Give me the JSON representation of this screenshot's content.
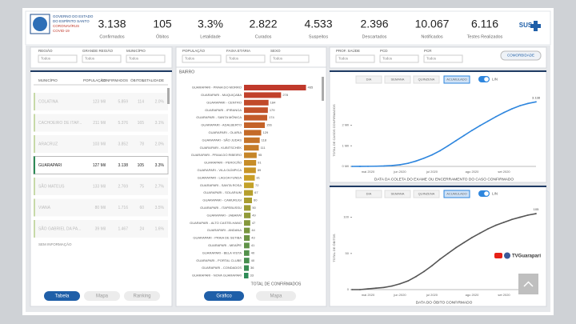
{
  "header": {
    "logo_lines": [
      "GOVERNO DO ESTADO",
      "DO ESPÍRITO SANTO",
      "CORONAVÍRUS",
      "COVID-19"
    ],
    "sus": "SUS"
  },
  "kpis": [
    {
      "value": "3.138",
      "label": "Confirmados"
    },
    {
      "value": "105",
      "label": "Óbitos"
    },
    {
      "value": "3.3%",
      "label": "Letalidade"
    },
    {
      "value": "2.822",
      "label": "Curados"
    },
    {
      "value": "4.533",
      "label": "Suspeitos"
    },
    {
      "value": "2.396",
      "label": "Descartados"
    },
    {
      "value": "10.067",
      "label": "Notificados"
    },
    {
      "value": "6.116",
      "label": "Testes Realizados"
    }
  ],
  "filters": {
    "left": [
      {
        "label": "REGIÃO",
        "value": "Todos"
      },
      {
        "label": "GRANDE REGIÃO",
        "value": "Todos"
      },
      {
        "label": "MUNICÍPIO",
        "value": "Todos"
      }
    ],
    "middle": [
      {
        "label": "POPULAÇÃO",
        "value": "Todos"
      },
      {
        "label": "FAIXA ETÁRIA",
        "value": "Todos"
      },
      {
        "label": "SEXO",
        "value": "Todos"
      }
    ],
    "right": [
      {
        "label": "PROF. SAÚDE",
        "value": "Todos"
      },
      {
        "label": "PCD",
        "value": "Todos"
      },
      {
        "label": "PCR",
        "value": "Todos"
      }
    ],
    "button": "COMORBIDADE"
  },
  "table": {
    "columns": [
      "MUNICÍPIO",
      "POPULAÇÃO",
      "CONFIRMADOS",
      "ÓBITOS",
      "LETALIDADE"
    ],
    "rows": [
      [
        "COLATINA",
        "123 Mil",
        "5.859",
        "114",
        "2.0%"
      ],
      [
        "CACHOEIRO DE ITAP...",
        "211 Mil",
        "5.376",
        "165",
        "3.1%"
      ],
      [
        "ARACRUZ",
        "103 Mil",
        "3.852",
        "78",
        "2.0%"
      ],
      [
        "GUARAPARI",
        "127 Mil",
        "3.138",
        "105",
        "3.3%"
      ],
      [
        "SÃO MATEUS",
        "133 Mil",
        "2.769",
        "75",
        "2.7%"
      ],
      [
        "VIANA",
        "80 Mil",
        "1.716",
        "60",
        "3.5%"
      ],
      [
        "SÃO GABRIEL DA PA...",
        "39 Mil",
        "1.467",
        "24",
        "1.6%"
      ]
    ],
    "selected_row": 3,
    "footer": "SEM INFORMAÇÃO"
  },
  "nav": {
    "left": [
      "Tabela",
      "Mapa",
      "Ranking"
    ],
    "middle": [
      "Gráfico",
      "Mapa"
    ]
  },
  "watermark": "TVGuarapari",
  "chart_data": [
    {
      "type": "bar",
      "title": "BAIRRO",
      "x_label": "TOTAL DE CONFIRMADOS",
      "categories": [
        "GUARAPARI - PRAIA DO MORRO",
        "GUARAPARI - MUQUIÇABA",
        "GUARAPARI - CENTRO",
        "GUARAPARI - IPIRANGA",
        "GUARAPARI - SANTA MÔNICA",
        "GUARAPARI - ADALBERTO",
        "GUARAPARI - OLARIA",
        "GUARAPARI - SÃO JUDAS",
        "GUARAPARI - KUBITSCHEK",
        "GUARAPARI - PRAIA DO RIBEIRO",
        "GUARAPARI - PEROCÃO",
        "GUARAPARI - VILA OLÍMPICA",
        "GUARAPARI - LAGOA FUNDA",
        "GUARAPARI - SANTA ROSA",
        "GUARAPARI - SOLARIUM",
        "GUARAPARI - CAMURUGI",
        "GUARAPARI - ITAPEBUSSU",
        "GUARAPARI - JABARAÍ",
        "GUARAPARI - ALTO CASTELHANO",
        "GUARAPARI - ANDANA",
        "GUARAPARI - PRAIA DE SETIBA",
        "GUARAPARI - MEAÍPE",
        "GUARAPARI - BELA VISTA",
        "GUARAPARI - PORTAL CLUBE",
        "GUARAPARI - CONDADOS",
        "GUARAPARI - NOVA GUARAPARI"
      ],
      "values": [
        465,
        278,
        184,
        179,
        174,
        156,
        129,
        118,
        111,
        95,
        91,
        89,
        81,
        72,
        67,
        60,
        50,
        49,
        47,
        44,
        43,
        41,
        40,
        40,
        36,
        33
      ],
      "xlim": [
        0,
        480
      ],
      "color_scale": [
        "#c0392b",
        "#c9a227",
        "#2e8b57"
      ]
    },
    {
      "type": "line",
      "buttons": [
        "DIA",
        "SEMANA",
        "QUINZENA",
        "ACUMULADO"
      ],
      "active_button": 3,
      "toggle": "LIN",
      "x_label": "DATA DA COLETA DO EXAME OU ENCERRAMENTO DO CASO CONFIRMADO",
      "y_label": "TOTAL DE CASOS CONFIRMADOS",
      "categories": [
        null,
        null,
        "mai 2020",
        null,
        null,
        null,
        "jun 2020",
        null,
        null,
        null,
        "jul 2020",
        null,
        null,
        null,
        null,
        "ago 2020",
        null,
        null,
        null,
        "set 2020",
        null,
        null,
        null,
        null
      ],
      "series": [
        {
          "name": "Confirmados",
          "color": "#2e86de",
          "values": [
            0,
            2,
            5,
            10,
            20,
            40,
            80,
            150,
            260,
            400,
            560,
            760,
            1000,
            1250,
            1500,
            1750,
            1980,
            2200,
            2420,
            2620,
            2800,
            2950,
            3060,
            3138
          ],
          "value_labels": [
            null,
            null,
            null,
            null,
            null,
            null,
            null,
            null,
            null,
            null,
            null,
            null,
            null,
            null,
            null,
            null,
            null,
            null,
            null,
            null,
            null,
            null,
            null,
            "3.138"
          ]
        }
      ],
      "ylim": [
        0,
        3500
      ],
      "yticks": [
        {
          "value": 0,
          "label": "0 Mil"
        },
        {
          "value": 1000,
          "label": "1 Mil"
        },
        {
          "value": 2000,
          "label": "2 Mil"
        }
      ]
    },
    {
      "type": "line",
      "buttons": [
        "DIA",
        "SEMANA",
        "QUINZENA",
        "ACUMULADO"
      ],
      "active_button": 3,
      "toggle": "LIN",
      "x_label": "DATA DO ÓBITO CONFIRMADO",
      "y_label": "TOTAL DE ÓBITOS",
      "categories": [
        null,
        null,
        "mai 2020",
        null,
        null,
        null,
        "jun 2020",
        null,
        null,
        null,
        "jul 2020",
        null,
        null,
        null,
        null,
        "ago 2020",
        null,
        null,
        null,
        "set 2020",
        null,
        null,
        null,
        null
      ],
      "series": [
        {
          "name": "Óbitos",
          "color": "#555555",
          "values": [
            0,
            0,
            1,
            2,
            3,
            5,
            8,
            12,
            18,
            25,
            33,
            42,
            50,
            58,
            65,
            72,
            78,
            84,
            89,
            93,
            97,
            100,
            103,
            105
          ],
          "value_labels": [
            null,
            null,
            null,
            null,
            null,
            null,
            null,
            null,
            null,
            null,
            null,
            null,
            null,
            null,
            null,
            null,
            null,
            null,
            null,
            null,
            null,
            null,
            null,
            "105"
          ]
        }
      ],
      "ylim": [
        0,
        115
      ],
      "yticks": [
        0,
        50,
        100
      ]
    }
  ]
}
